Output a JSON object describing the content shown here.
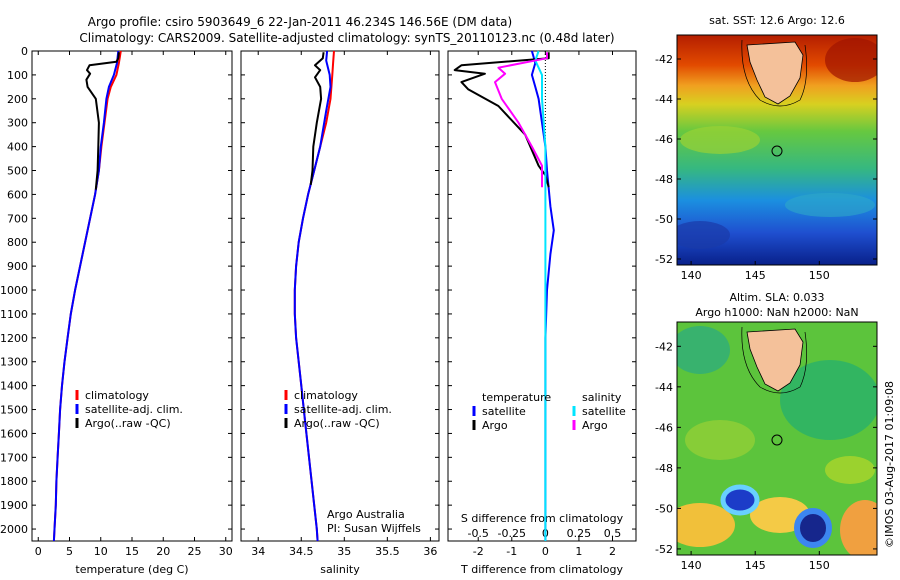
{
  "header": {
    "title_line1": "Argo profile: csiro 5903649_6 22-Jan-2011 46.234S 146.56E (DM data)",
    "title_line2": "Climatology: CARS2009. Satellite-adjusted climatology: synTS_20110123.nc (0.48d later)"
  },
  "colors": {
    "climatology": "#ff0000",
    "satellite": "#0000ff",
    "argo": "#000000",
    "sal_satellite": "#00e5ff",
    "sal_argo": "#ff00ff"
  },
  "chart_data": [
    {
      "type": "line",
      "id": "temperature",
      "xlabel": "temperature (deg C)",
      "xlim": [
        -1,
        31
      ],
      "ylim": [
        2050,
        0
      ],
      "xticks": [
        0,
        5,
        10,
        15,
        20,
        25,
        30
      ],
      "yticks": [
        0,
        100,
        200,
        300,
        400,
        500,
        600,
        700,
        800,
        900,
        1000,
        1100,
        1200,
        1300,
        1400,
        1500,
        1600,
        1700,
        1800,
        1900,
        2000
      ],
      "legend": [
        "climatology",
        "satellite-adj. clim.",
        "Argo(..raw -QC)"
      ],
      "series": [
        {
          "name": "climatology",
          "color": "#ff0000",
          "points": [
            [
              13.2,
              0
            ],
            [
              12.9,
              50
            ],
            [
              12.5,
              100
            ],
            [
              11.6,
              150
            ],
            [
              11.1,
              200
            ],
            [
              10.6,
              300
            ],
            [
              10.1,
              400
            ],
            [
              9.7,
              500
            ],
            [
              9.1,
              600
            ],
            [
              8.3,
              700
            ],
            [
              7.5,
              800
            ],
            [
              6.7,
              900
            ],
            [
              5.9,
              1000
            ],
            [
              5.2,
              1100
            ],
            [
              4.7,
              1200
            ],
            [
              4.2,
              1300
            ],
            [
              3.8,
              1400
            ],
            [
              3.5,
              1500
            ],
            [
              3.3,
              1600
            ],
            [
              3.1,
              1700
            ],
            [
              2.9,
              1800
            ],
            [
              2.8,
              1900
            ],
            [
              2.6,
              2000
            ],
            [
              2.5,
              2050
            ]
          ]
        },
        {
          "name": "satellite-adj. clim.",
          "color": "#0000ff",
          "points": [
            [
              12.8,
              0
            ],
            [
              12.6,
              50
            ],
            [
              12.1,
              100
            ],
            [
              11.3,
              150
            ],
            [
              10.9,
              200
            ],
            [
              10.5,
              300
            ],
            [
              10.0,
              400
            ],
            [
              9.7,
              500
            ],
            [
              9.1,
              600
            ],
            [
              8.3,
              700
            ],
            [
              7.5,
              800
            ],
            [
              6.7,
              900
            ],
            [
              5.9,
              1000
            ],
            [
              5.2,
              1100
            ],
            [
              4.7,
              1200
            ],
            [
              4.2,
              1300
            ],
            [
              3.8,
              1400
            ],
            [
              3.5,
              1500
            ],
            [
              3.3,
              1600
            ],
            [
              3.1,
              1700
            ],
            [
              2.9,
              1800
            ],
            [
              2.8,
              1900
            ],
            [
              2.6,
              2000
            ],
            [
              2.5,
              2050
            ]
          ]
        },
        {
          "name": "Argo(..raw -QC)",
          "color": "#000000",
          "points": [
            [
              12.9,
              5
            ],
            [
              12.8,
              30
            ],
            [
              12.5,
              45
            ],
            [
              8.2,
              60
            ],
            [
              7.8,
              80
            ],
            [
              8.3,
              95
            ],
            [
              7.7,
              120
            ],
            [
              7.9,
              150
            ],
            [
              9.2,
              200
            ],
            [
              9.7,
              300
            ],
            [
              9.6,
              400
            ],
            [
              9.5,
              500
            ],
            [
              9.2,
              580
            ]
          ]
        }
      ]
    },
    {
      "type": "line",
      "id": "salinity",
      "xlabel": "salinity",
      "xlim": [
        33.8,
        36.1
      ],
      "ylim": [
        2050,
        0
      ],
      "xticks": [
        34,
        34.5,
        35,
        35.5,
        36
      ],
      "legend": [
        "climatology",
        "satellite-adj. clim.",
        "Argo(..raw -QC)"
      ],
      "series": [
        {
          "name": "climatology",
          "color": "#ff0000",
          "points": [
            [
              34.88,
              0
            ],
            [
              34.87,
              50
            ],
            [
              34.86,
              100
            ],
            [
              34.84,
              200
            ],
            [
              34.79,
              300
            ],
            [
              34.72,
              400
            ],
            [
              34.65,
              500
            ],
            [
              34.58,
              600
            ],
            [
              34.52,
              700
            ],
            [
              34.47,
              800
            ],
            [
              34.44,
              900
            ],
            [
              34.425,
              1000
            ],
            [
              34.425,
              1100
            ],
            [
              34.44,
              1200
            ],
            [
              34.47,
              1300
            ],
            [
              34.5,
              1400
            ],
            [
              34.53,
              1500
            ],
            [
              34.56,
              1600
            ],
            [
              34.59,
              1700
            ],
            [
              34.62,
              1800
            ],
            [
              34.65,
              1900
            ],
            [
              34.68,
              2000
            ],
            [
              34.69,
              2050
            ]
          ]
        },
        {
          "name": "satellite-adj. clim.",
          "color": "#0000ff",
          "points": [
            [
              34.8,
              0
            ],
            [
              34.79,
              40
            ],
            [
              34.83,
              100
            ],
            [
              34.84,
              150
            ],
            [
              34.79,
              250
            ],
            [
              34.72,
              400
            ],
            [
              34.65,
              500
            ],
            [
              34.58,
              600
            ],
            [
              34.52,
              700
            ],
            [
              34.47,
              800
            ],
            [
              34.44,
              900
            ],
            [
              34.425,
              1000
            ],
            [
              34.425,
              1100
            ],
            [
              34.44,
              1200
            ],
            [
              34.47,
              1300
            ],
            [
              34.5,
              1400
            ],
            [
              34.53,
              1500
            ],
            [
              34.56,
              1600
            ],
            [
              34.59,
              1700
            ],
            [
              34.62,
              1800
            ],
            [
              34.65,
              1900
            ],
            [
              34.68,
              2000
            ],
            [
              34.69,
              2050
            ]
          ]
        },
        {
          "name": "Argo(..raw -QC)",
          "color": "#000000",
          "points": [
            [
              34.76,
              5
            ],
            [
              34.75,
              30
            ],
            [
              34.66,
              60
            ],
            [
              34.72,
              80
            ],
            [
              34.66,
              110
            ],
            [
              34.72,
              150
            ],
            [
              34.73,
              200
            ],
            [
              34.68,
              300
            ],
            [
              34.64,
              400
            ],
            [
              34.63,
              500
            ],
            [
              34.61,
              560
            ]
          ]
        }
      ],
      "annotation_line1": "Argo Australia",
      "annotation_line2": "PI: Susan Wijffels"
    },
    {
      "type": "line",
      "id": "difference",
      "xlabel_top": "S difference from climatology",
      "xlabel_bottom": "T difference from climatology",
      "xlim": [
        -2.9,
        2.7
      ],
      "ylim": [
        2050,
        0
      ],
      "xticks_T": [
        -2,
        -1,
        0,
        1,
        2
      ],
      "xticks_S_labels": [
        "-0.5",
        "-0.25",
        "0",
        "0.25",
        "0.5"
      ],
      "legend_temperature_title": "temperature",
      "legend_salinity_title": "salinity",
      "legend_temperature": [
        "satellite",
        "Argo"
      ],
      "legend_salinity": [
        "satellite",
        "Argo"
      ],
      "series": [
        {
          "name": "temperature satellite",
          "color": "#0000ff",
          "points": [
            [
              -0.4,
              0
            ],
            [
              -0.3,
              50
            ],
            [
              -0.4,
              100
            ],
            [
              -0.3,
              150
            ],
            [
              -0.2,
              200
            ],
            [
              -0.1,
              300
            ],
            [
              0,
              400
            ],
            [
              0.05,
              500
            ],
            [
              0.15,
              650
            ],
            [
              0.25,
              750
            ],
            [
              0.15,
              850
            ],
            [
              0.05,
              1000
            ],
            [
              0,
              1200
            ],
            [
              0,
              1500
            ],
            [
              0,
              2050
            ]
          ]
        },
        {
          "name": "temperature Argo",
          "color": "#000000",
          "points": [
            [
              0.1,
              5
            ],
            [
              0.1,
              30
            ],
            [
              -2.5,
              60
            ],
            [
              -2.7,
              80
            ],
            [
              -1.8,
              95
            ],
            [
              -2.5,
              130
            ],
            [
              -2.3,
              160
            ],
            [
              -1.4,
              230
            ],
            [
              -0.6,
              350
            ],
            [
              -0.2,
              480
            ],
            [
              0,
              520
            ],
            [
              0.1,
              570
            ]
          ]
        },
        {
          "name": "salinity satellite",
          "color": "#00e5ff",
          "points": [
            [
              -0.2,
              0
            ],
            [
              -0.3,
              40
            ],
            [
              -0.1,
              100
            ],
            [
              -0.1,
              200
            ],
            [
              0,
              400
            ],
            [
              0,
              600
            ],
            [
              0,
              1000
            ],
            [
              0,
              2050
            ]
          ]
        },
        {
          "name": "salinity Argo",
          "color": "#ff00ff",
          "points": [
            [
              0.05,
              5
            ],
            [
              0.05,
              30
            ],
            [
              -1.4,
              70
            ],
            [
              -1.2,
              95
            ],
            [
              -1.5,
              130
            ],
            [
              -1.3,
              200
            ],
            [
              -0.8,
              300
            ],
            [
              -0.4,
              400
            ],
            [
              -0.1,
              480
            ],
            [
              -0.1,
              570
            ]
          ]
        }
      ]
    }
  ],
  "maps": {
    "sst": {
      "title": "sat. SST: 12.6  Argo: 12.6",
      "yticks": [
        "-42",
        "-44",
        "-46",
        "-48",
        "-50",
        "-52"
      ],
      "xticks": [
        "140",
        "145",
        "150"
      ]
    },
    "sla": {
      "title_line1": "Altim. SLA: 0.033",
      "title_line2": "Argo h1000: NaN h2000: NaN",
      "yticks": [
        "-42",
        "-44",
        "-46",
        "-48",
        "-50",
        "-52"
      ],
      "xticks": [
        "140",
        "145",
        "150"
      ]
    }
  },
  "footer": {
    "credit": "©IMOS 03-Aug-2017 01:09:08"
  }
}
